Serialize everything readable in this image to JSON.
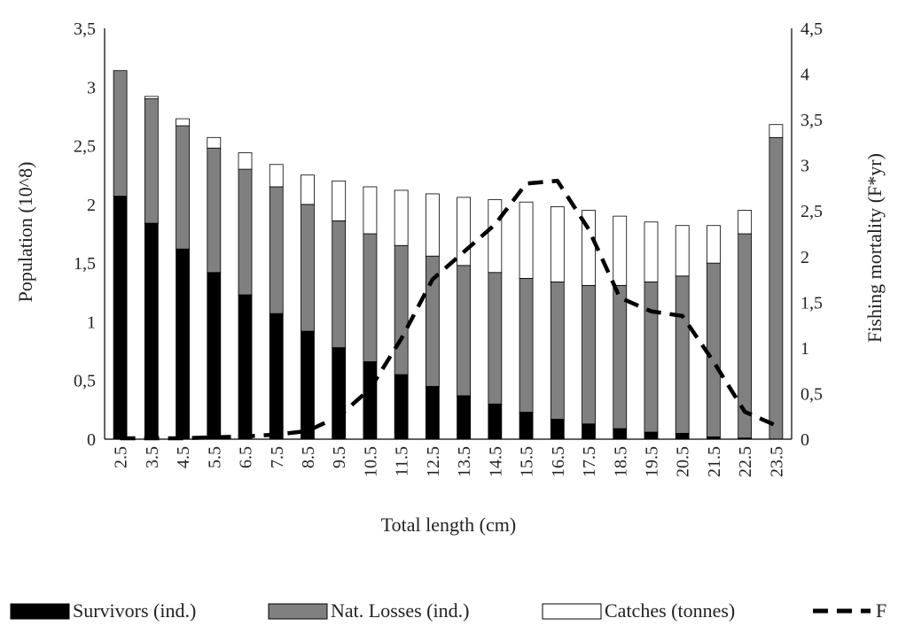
{
  "chart_data": {
    "type": "bar",
    "stacked": true,
    "categories": [
      "2.5",
      "3.5",
      "4.5",
      "5.5",
      "6.5",
      "7.5",
      "8.5",
      "9.5",
      "10.5",
      "11.5",
      "12.5",
      "13.5",
      "14.5",
      "15.5",
      "16.5",
      "17.5",
      "18.5",
      "19.5",
      "20.5",
      "21.5",
      "22.5",
      "23.5"
    ],
    "series": [
      {
        "name": "Survivors (ind.)",
        "axis": "left",
        "color": "#000000",
        "values": [
          2.07,
          1.84,
          1.62,
          1.42,
          1.23,
          1.07,
          0.92,
          0.78,
          0.66,
          0.55,
          0.45,
          0.37,
          0.3,
          0.23,
          0.17,
          0.13,
          0.09,
          0.06,
          0.05,
          0.02,
          0.01,
          0.0
        ]
      },
      {
        "name": "Nat. Losses (ind.)",
        "axis": "left",
        "color": "#808080",
        "values": [
          1.07,
          1.06,
          1.05,
          1.06,
          1.07,
          1.08,
          1.08,
          1.08,
          1.09,
          1.1,
          1.11,
          1.11,
          1.12,
          1.14,
          1.17,
          1.18,
          1.22,
          1.28,
          1.34,
          1.48,
          1.74,
          2.57
        ]
      },
      {
        "name": "Catches (tonnes)",
        "axis": "left",
        "color": "#ffffff",
        "values": [
          0.0,
          0.02,
          0.06,
          0.09,
          0.14,
          0.19,
          0.25,
          0.34,
          0.4,
          0.47,
          0.53,
          0.58,
          0.62,
          0.65,
          0.64,
          0.64,
          0.59,
          0.51,
          0.43,
          0.32,
          0.2,
          0.11
        ]
      },
      {
        "name": "F",
        "type": "line",
        "axis": "right",
        "style": "dashed",
        "color": "#000000",
        "values": [
          0.01,
          0.01,
          0.01,
          0.02,
          0.03,
          0.05,
          0.09,
          0.25,
          0.55,
          1.1,
          1.75,
          2.05,
          2.35,
          2.8,
          2.83,
          2.3,
          1.55,
          1.4,
          1.35,
          0.85,
          0.3,
          0.15
        ]
      }
    ],
    "xlabel": "Total length (cm)",
    "ylabel": "Population (10^8)",
    "y2label": "Fishing mortality (F*yr)",
    "ylim": [
      0,
      3.5
    ],
    "y2lim": [
      0,
      4.5
    ],
    "yticks": [
      "0",
      "0,5",
      "1",
      "1,5",
      "2",
      "2,5",
      "3",
      "3,5"
    ],
    "y2ticks": [
      "0",
      "0,5",
      "1",
      "1,5",
      "2",
      "2,5",
      "3",
      "3,5",
      "4",
      "4,5"
    ],
    "grid": false,
    "legend_position": "bottom"
  }
}
